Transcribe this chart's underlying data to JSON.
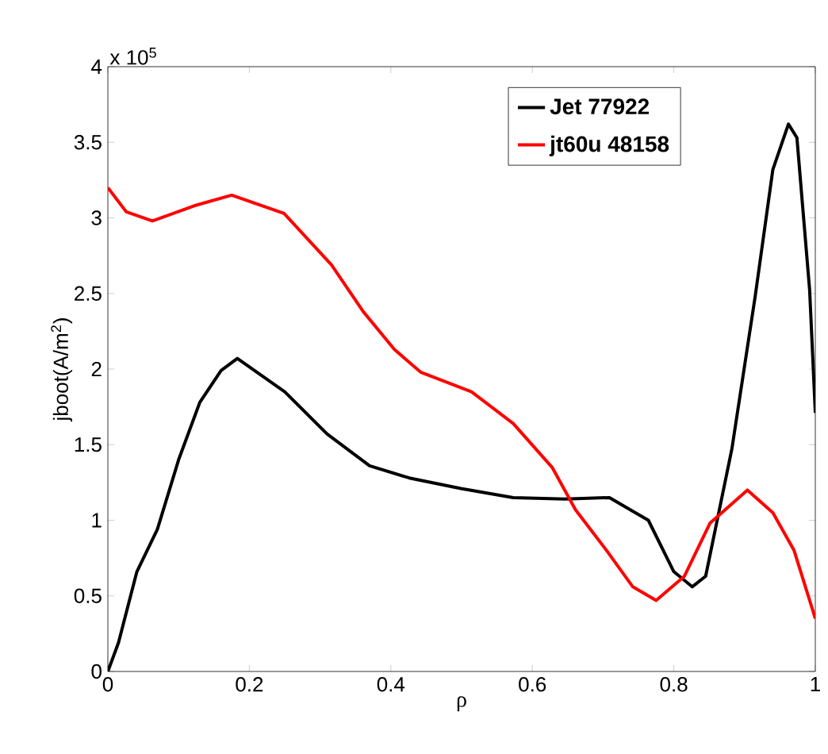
{
  "chart_data": {
    "type": "line",
    "xlabel": "ρ",
    "ylabel": "jboot(A/m$^{2}$)",
    "annotations": [
      "x 10$^{5}$"
    ],
    "xlim": [
      0,
      1
    ],
    "ylim": [
      0,
      4
    ],
    "xticks": [
      0,
      0.2,
      0.4,
      0.6,
      0.8,
      1
    ],
    "yticks": [
      0,
      0.5,
      1,
      1.5,
      2,
      2.5,
      3,
      3.5,
      4
    ],
    "grid": false,
    "legend": "top right",
    "marker": "none",
    "line_style": "solid",
    "series": [
      {
        "name": "Jet 77922",
        "color": "#000000",
        "x": [
          0,
          0.015,
          0.041,
          0.07,
          0.1,
          0.13,
          0.16,
          0.183,
          0.25,
          0.31,
          0.37,
          0.426,
          0.499,
          0.573,
          0.646,
          0.709,
          0.764,
          0.8,
          0.826,
          0.845,
          0.882,
          0.915,
          0.94,
          0.962,
          0.974,
          0.992,
          1.0
        ],
        "values": [
          0,
          0.19,
          0.66,
          0.94,
          1.4,
          1.78,
          1.99,
          2.07,
          1.85,
          1.57,
          1.36,
          1.28,
          1.21,
          1.15,
          1.14,
          1.15,
          1.0,
          0.66,
          0.56,
          0.63,
          1.47,
          2.48,
          3.32,
          3.62,
          3.53,
          2.52,
          1.71
        ]
      },
      {
        "name": "jt60u 48158",
        "color": "#ff0000",
        "x": [
          0,
          0.026,
          0.063,
          0.122,
          0.175,
          0.249,
          0.316,
          0.361,
          0.405,
          0.442,
          0.514,
          0.573,
          0.628,
          0.661,
          0.705,
          0.742,
          0.775,
          0.815,
          0.851,
          0.904,
          0.94,
          0.97,
          1.0
        ],
        "values": [
          3.2,
          3.04,
          2.98,
          3.08,
          3.15,
          3.03,
          2.69,
          2.38,
          2.13,
          1.98,
          1.85,
          1.64,
          1.35,
          1.07,
          0.8,
          0.56,
          0.47,
          0.63,
          0.98,
          1.2,
          1.05,
          0.8,
          0.35
        ]
      }
    ]
  }
}
